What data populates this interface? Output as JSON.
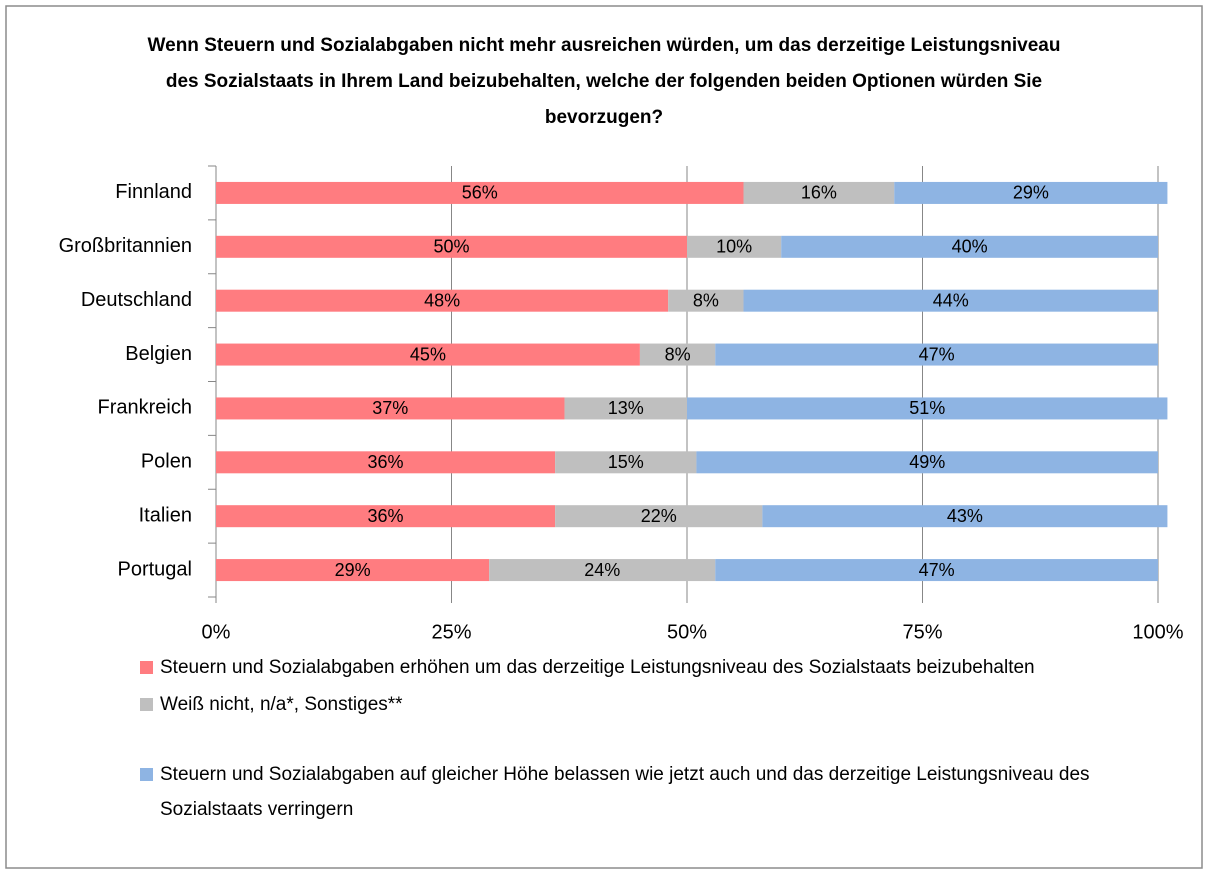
{
  "chart_data": {
    "type": "stacked-bar-horizontal",
    "title": "Wenn Steuern und Sozialabgaben nicht mehr ausreichen würden, um das derzeitige Leistungsniveau des Sozialstaats in Ihrem Land beizubehalten, welche der folgenden beiden Optionen würden Sie bevorzugen?",
    "categories": [
      "Finnland",
      "Großbritannien",
      "Deutschland",
      "Belgien",
      "Frankreich",
      "Polen",
      "Italien",
      "Portugal"
    ],
    "series": [
      {
        "name": "Steuern und Sozialabgaben erhöhen um das derzeitige Leistungsniveau des Sozialstaats beizubehalten",
        "color": "#ff7c80",
        "values": [
          56,
          50,
          48,
          45,
          37,
          36,
          36,
          29
        ],
        "value_labels": [
          "56%",
          "50%",
          "48%",
          "45%",
          "37%",
          "36%",
          "36%",
          "29%"
        ]
      },
      {
        "name": "Weiß nicht, n/a*, Sonstiges**",
        "color": "#bfbfbf",
        "values": [
          16,
          10,
          8,
          8,
          13,
          15,
          22,
          24
        ],
        "value_labels": [
          "16%",
          "10%",
          "8%",
          "8%",
          "13%",
          "15%",
          "22%",
          "24%"
        ]
      },
      {
        "name": "Steuern und Sozialabgaben auf gleicher Höhe belassen wie jetzt auch und das derzeitige Leistungsniveau des Sozialstaats verringern",
        "color": "#8eb4e3",
        "values": [
          29,
          40,
          44,
          47,
          51,
          49,
          43,
          47
        ],
        "value_labels": [
          "29%",
          "40%",
          "44%",
          "47%",
          "51%",
          "49%",
          "43%",
          "47%"
        ]
      }
    ],
    "xlim": [
      0,
      100
    ],
    "xticks": [
      {
        "value": 0,
        "label": "0%"
      },
      {
        "value": 25,
        "label": "25%"
      },
      {
        "value": 50,
        "label": "50%"
      },
      {
        "value": 75,
        "label": "75%"
      },
      {
        "value": 100,
        "label": "100%"
      }
    ],
    "grid": true,
    "legend": "bottom"
  }
}
